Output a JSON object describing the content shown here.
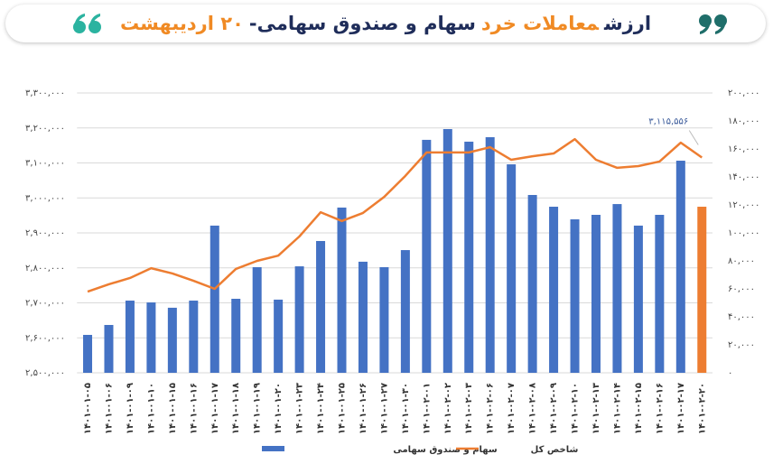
{
  "chart_data": {
    "type": "bar_line",
    "title": [
      {
        "text": "ارزش",
        "color": "#1f2d5a"
      },
      {
        "text": "معاملات خرد",
        "color": "#f08a24"
      },
      {
        "text": "سهام و صندوق سهامی-",
        "color": "#1f2d5a"
      },
      {
        "text": "۲۰ اردیبهشت",
        "color": "#f08a24"
      }
    ],
    "categories": [
      "۱۴۰۱-۰۱-۰۵",
      "۱۴۰۱-۰۱-۰۶",
      "۱۴۰۱-۰۱-۰۹",
      "۱۴۰۱-۰۱-۱۰",
      "۱۴۰۱-۰۱-۱۵",
      "۱۴۰۱-۰۱-۱۶",
      "۱۴۰۱-۰۱-۱۷",
      "۱۴۰۱-۰۱-۱۸",
      "۱۴۰۱-۰۱-۱۹",
      "۱۴۰۱-۰۱-۲۰",
      "۱۴۰۱-۰۱-۲۳",
      "۱۴۰۱-۰۱-۲۴",
      "۱۴۰۱-۰۱-۲۵",
      "۱۴۰۱-۰۱-۲۶",
      "۱۴۰۱-۰۱-۲۷",
      "۱۴۰۱-۰۱-۳۰",
      "۱۴۰۱-۰۲-۰۱",
      "۱۴۰۱-۰۲-۰۲",
      "۱۴۰۱-۰۲-۰۳",
      "۱۴۰۱-۰۲-۰۶",
      "۱۴۰۱-۰۲-۰۷",
      "۱۴۰۱-۰۲-۰۸",
      "۱۴۰۱-۰۲-۰۹",
      "۱۴۰۱-۰۲-۱۰",
      "۱۴۰۱-۰۲-۱۳",
      "۱۴۰۱-۰۲-۱۴",
      "۱۴۰۱-۰۲-۱۵",
      "۱۴۰۱-۰۲-۱۶",
      "۱۴۰۱-۰۲-۱۷",
      "۱۴۰۱-۰۲-۲۰"
    ],
    "series": [
      {
        "name": "سهام و صندوق سهامی",
        "type": "bar",
        "axis": "y2",
        "color": "#4472c4",
        "highlight": {
          "index": 29,
          "color": "#ed7d31"
        },
        "values": [
          27100,
          34200,
          51600,
          50300,
          46500,
          51600,
          105200,
          52900,
          75500,
          52300,
          76100,
          94200,
          118100,
          79400,
          75500,
          87700,
          166500,
          174200,
          165200,
          168400,
          149000,
          127100,
          118700,
          109700,
          112900,
          120600,
          105200,
          112900,
          151600,
          118700
        ]
      },
      {
        "name": "شاخص کل",
        "type": "line",
        "axis": "y",
        "color": "#ed7d31",
        "values": [
          2732000,
          2753000,
          2771000,
          2799000,
          2784000,
          2763000,
          2740000,
          2797000,
          2820000,
          2835000,
          2890000,
          2959000,
          2934000,
          2957000,
          3003000,
          3063000,
          3130000,
          3130000,
          3130000,
          3145000,
          3109000,
          3119000,
          3127000,
          3168000,
          3109000,
          3086000,
          3091000,
          3104000,
          3158000,
          3115556
        ],
        "value_labels": [
          null,
          null,
          null,
          null,
          null,
          null,
          null,
          null,
          null,
          null,
          null,
          null,
          null,
          null,
          null,
          null,
          null,
          null,
          null,
          null,
          null,
          null,
          null,
          null,
          null,
          null,
          null,
          null,
          null,
          "۳,۱۱۵,۵۵۶"
        ]
      }
    ],
    "ylim": [
      2500000,
      3300000
    ],
    "yticks": [
      {
        "value": 2500000,
        "label": "۲,۵۰۰,۰۰۰"
      },
      {
        "value": 2600000,
        "label": "۲,۶۰۰,۰۰۰"
      },
      {
        "value": 2700000,
        "label": "۲,۷۰۰,۰۰۰"
      },
      {
        "value": 2800000,
        "label": "۲,۸۰۰,۰۰۰"
      },
      {
        "value": 2900000,
        "label": "۲,۹۰۰,۰۰۰"
      },
      {
        "value": 3000000,
        "label": "۳,۰۰۰,۰۰۰"
      },
      {
        "value": 3100000,
        "label": "۳,۱۰۰,۰۰۰"
      },
      {
        "value": 3200000,
        "label": "۳,۲۰۰,۰۰۰"
      },
      {
        "value": 3300000,
        "label": "۳,۳۰۰,۰۰۰"
      }
    ],
    "y2lim": [
      0,
      200000
    ],
    "y2ticks": [
      {
        "value": 0,
        "label": "۰"
      },
      {
        "value": 20000,
        "label": "۲۰,۰۰۰"
      },
      {
        "value": 40000,
        "label": "۴۰,۰۰۰"
      },
      {
        "value": 60000,
        "label": "۶۰,۰۰۰"
      },
      {
        "value": 80000,
        "label": "۸۰,۰۰۰"
      },
      {
        "value": 100000,
        "label": "۱۰۰,۰۰۰"
      },
      {
        "value": 120000,
        "label": "۱۲۰,۰۰۰"
      },
      {
        "value": 140000,
        "label": "۱۴۰,۰۰۰"
      },
      {
        "value": 160000,
        "label": "۱۶۰,۰۰۰"
      },
      {
        "value": 180000,
        "label": "۱۸۰,۰۰۰"
      },
      {
        "value": 200000,
        "label": "۲۰۰,۰۰۰"
      }
    ],
    "grid": true,
    "legend": "bottom"
  }
}
